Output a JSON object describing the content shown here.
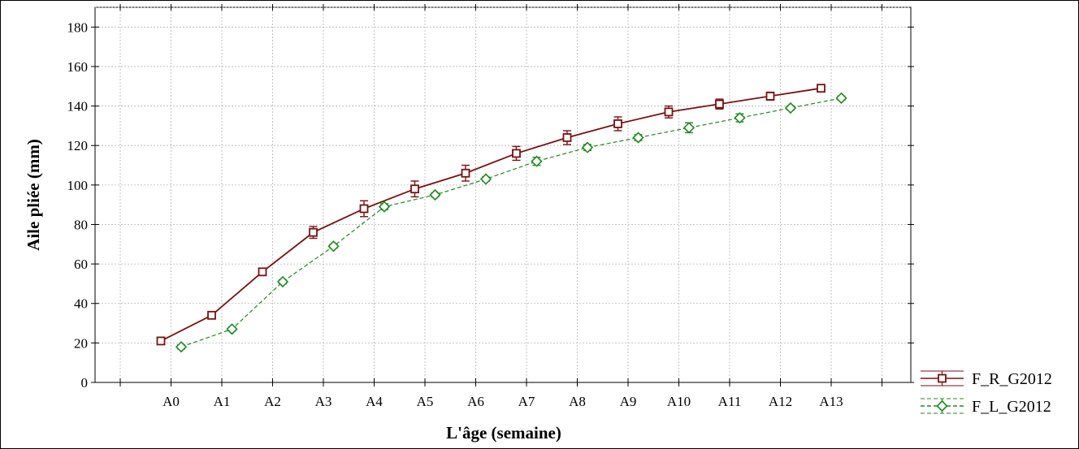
{
  "chart_data": {
    "type": "line",
    "xlabel": "L'âge (semaine)",
    "ylabel": "Aile pliée (mm)",
    "categories": [
      "A0",
      "A1",
      "A2",
      "A3",
      "A4",
      "A5",
      "A6",
      "A7",
      "A8",
      "A9",
      "A10",
      "A11",
      "A12",
      "A13"
    ],
    "ylim": [
      0,
      190
    ],
    "yticks": [
      0,
      20,
      40,
      60,
      80,
      100,
      120,
      140,
      160,
      180
    ],
    "grid": true,
    "legend_position": "bottom-right, outside plot",
    "series": [
      {
        "name": "F_R_G2012",
        "color": "#7a1010",
        "marker": "square",
        "line_style": "solid",
        "offset": -0.2,
        "values": [
          21,
          34,
          56,
          76,
          88,
          98,
          106,
          116,
          124,
          131,
          137,
          141,
          145,
          149
        ],
        "errors": [
          1,
          1,
          1.5,
          3,
          4,
          4,
          4,
          3.5,
          3.5,
          3.5,
          3,
          2.5,
          2,
          1.5
        ]
      },
      {
        "name": "F_L_G2012",
        "color": "#1e8a1e",
        "marker": "diamond",
        "line_style": "dashed",
        "offset": 0.2,
        "values": [
          18,
          27,
          51,
          69,
          89,
          95,
          103,
          112,
          119,
          124,
          129,
          134,
          139,
          144
        ],
        "errors": [
          1,
          1,
          1,
          1,
          1.5,
          1,
          1,
          2,
          1.5,
          1.5,
          2.5,
          2,
          1,
          1
        ]
      }
    ]
  }
}
